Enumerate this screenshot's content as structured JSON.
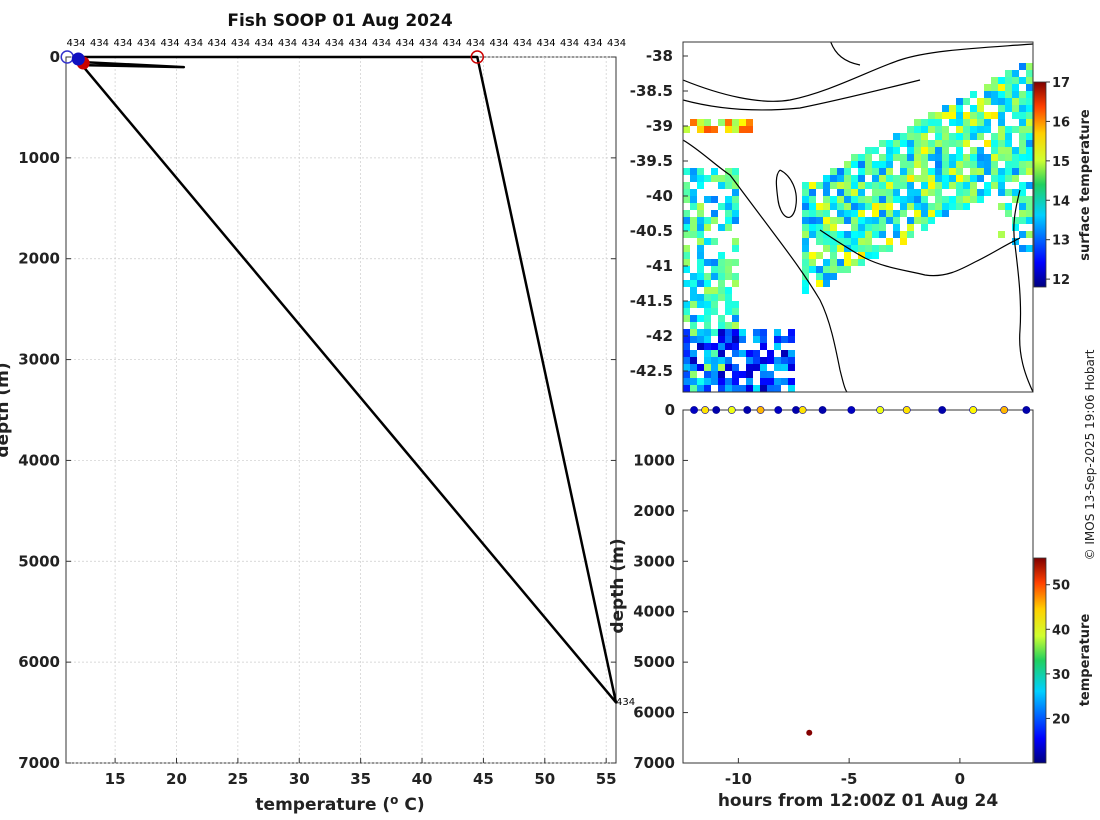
{
  "chart_data": [
    {
      "type": "line",
      "title": "Fish SOOP 01 Aug 2024",
      "xlabel": "temperature (",
      "xlabel_sup": "o",
      "xlabel_unit": " C)",
      "ylabel": "depth (m)",
      "xlim": [
        11,
        55.8
      ],
      "ylim": [
        0,
        7000
      ],
      "y_reversed": true,
      "grid": true,
      "xticks": [
        15,
        20,
        25,
        30,
        35,
        40,
        45,
        50,
        55
      ],
      "yticks": [
        0,
        1000,
        2000,
        3000,
        4000,
        5000,
        6000,
        7000
      ],
      "profile_id_label": "434",
      "top_labels_count": 24,
      "series": [
        {
          "name": "profile",
          "x": [
            11.6,
            12.3,
            44.5,
            55.8,
            12.3,
            12.3,
            20.6,
            12.2
          ],
          "y": [
            0,
            0,
            0,
            6400,
            80,
            80,
            100,
            50
          ]
        }
      ],
      "markers": [
        {
          "x": 11.1,
          "y": 0,
          "color": "#3333cc",
          "shape": "open-circle"
        },
        {
          "x": 44.5,
          "y": 0,
          "color": "#cc0000",
          "shape": "open-circle"
        },
        {
          "x": 12.4,
          "y": 60,
          "color": "#cc0000",
          "shape": "filled-circle"
        },
        {
          "x": 12.0,
          "y": 20,
          "color": "#1010c0",
          "shape": "filled-circle"
        }
      ],
      "end_label": {
        "x": 55.8,
        "y": 6400,
        "text": "434"
      }
    },
    {
      "type": "heatmap",
      "title": "",
      "xlabel": "",
      "ylabel": "",
      "yticks": [
        -38,
        -38.5,
        -39,
        -39.5,
        -40,
        -40.5,
        -41,
        -41.5,
        -42,
        -42.5
      ],
      "ylim": [
        -42.8,
        -37.8
      ],
      "colorbar": {
        "label": "surface temperature",
        "min": 11.8,
        "max": 17,
        "ticks": [
          12,
          13,
          14,
          15,
          16,
          17
        ]
      }
    },
    {
      "type": "scatter",
      "xlabel": "hours from 12:00Z 01 Aug 24",
      "ylabel": "depth (m)",
      "xlim": [
        -12.5,
        3.3
      ],
      "ylim": [
        0,
        7000
      ],
      "y_reversed": true,
      "xticks": [
        -10,
        -5,
        0
      ],
      "yticks": [
        0,
        1000,
        2000,
        3000,
        4000,
        5000,
        6000,
        7000
      ],
      "deep_point": {
        "hours": -6.8,
        "depth": 6400,
        "temperature": 55.8
      },
      "surface_points": [
        {
          "hours": -12.0,
          "temperature": 13
        },
        {
          "hours": -11.5,
          "temperature": 40
        },
        {
          "hours": -11.0,
          "temperature": 12
        },
        {
          "hours": -10.3,
          "temperature": 38
        },
        {
          "hours": -9.6,
          "temperature": 12
        },
        {
          "hours": -9.0,
          "temperature": 42
        },
        {
          "hours": -8.2,
          "temperature": 13
        },
        {
          "hours": -7.4,
          "temperature": 12
        },
        {
          "hours": -7.1,
          "temperature": 40
        },
        {
          "hours": -6.2,
          "temperature": 12
        },
        {
          "hours": -4.9,
          "temperature": 13
        },
        {
          "hours": -3.6,
          "temperature": 38
        },
        {
          "hours": -2.4,
          "temperature": 40
        },
        {
          "hours": -0.8,
          "temperature": 12
        },
        {
          "hours": 0.6,
          "temperature": 39
        },
        {
          "hours": 2.0,
          "temperature": 42
        },
        {
          "hours": 3.0,
          "temperature": 12
        }
      ],
      "colorbar": {
        "label": "temperature",
        "min": 10,
        "max": 56,
        "ticks": [
          20,
          30,
          40,
          50
        ]
      }
    }
  ],
  "credit": "© IMOS 13-Sep-2025 19:06 Hobart"
}
